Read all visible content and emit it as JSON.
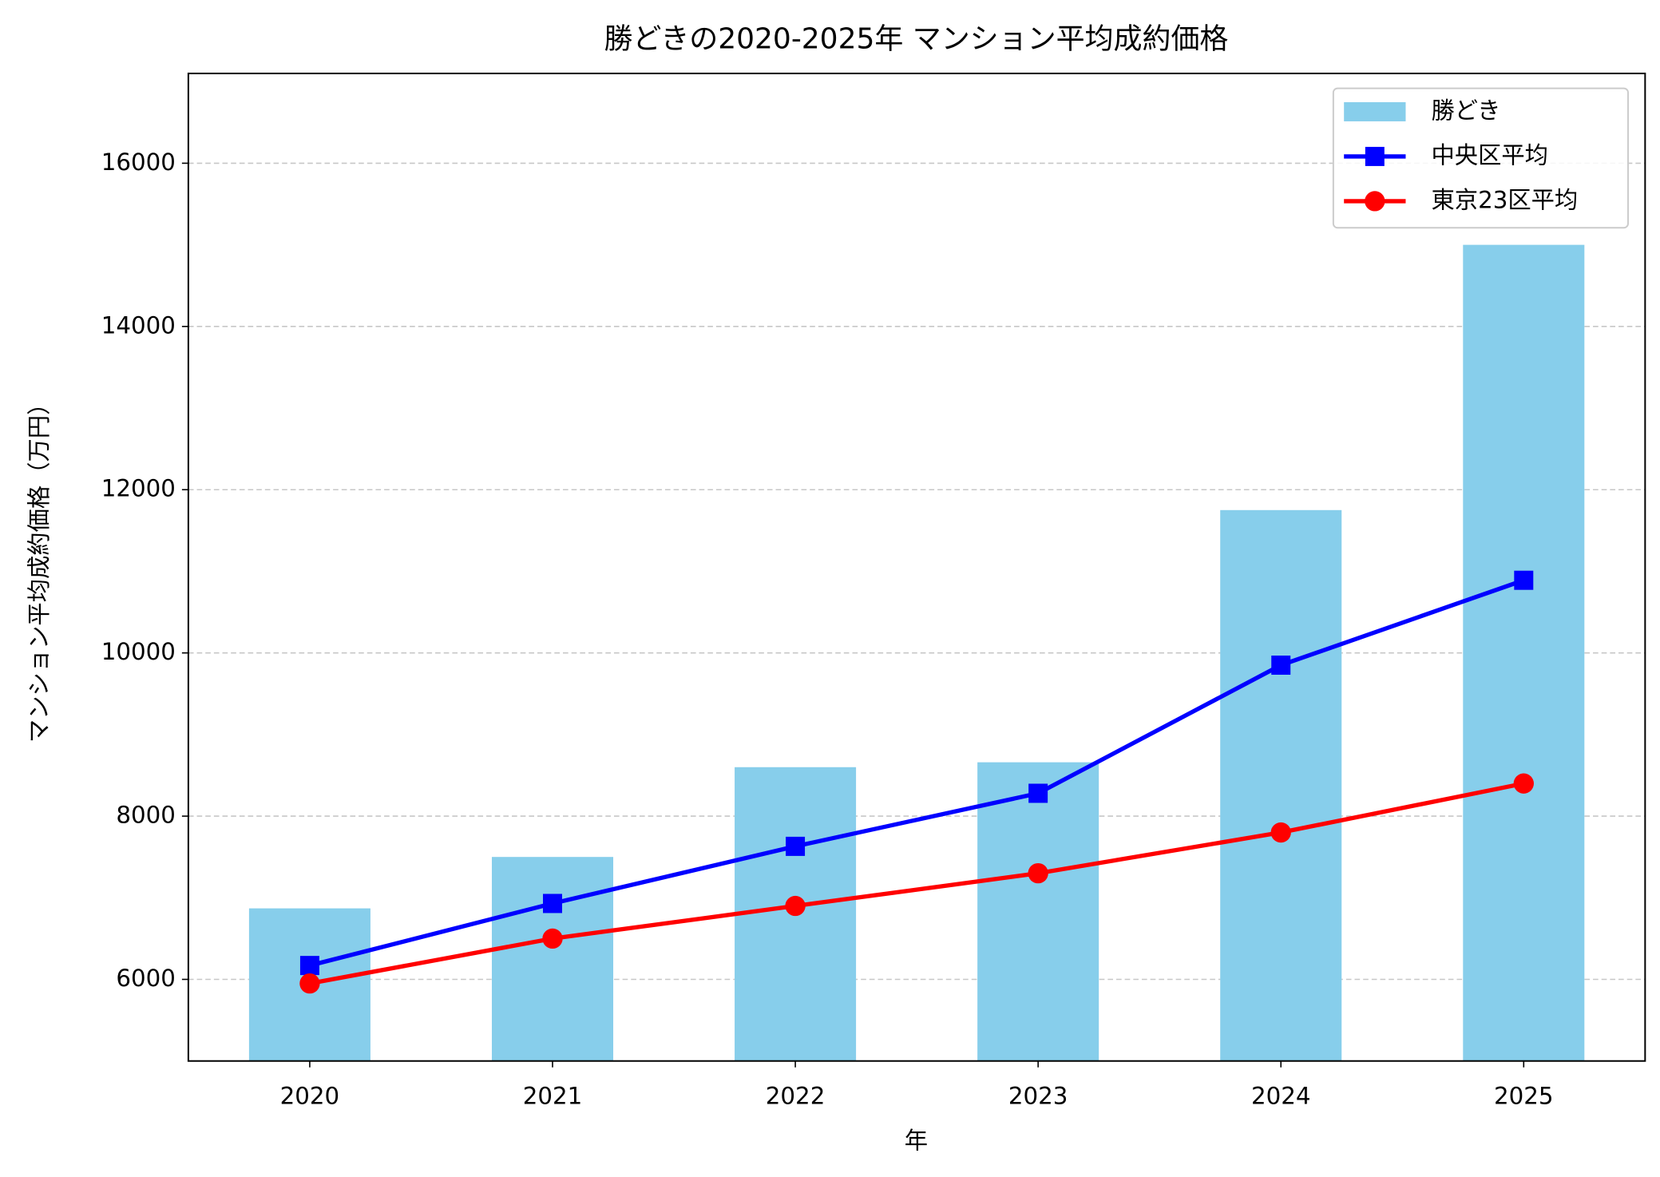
{
  "chart_data": {
    "type": "bar_line",
    "title": "勝どきの2020-2025年 マンション平均成約価格",
    "x_label": "年",
    "y_label": "マンション平均成約価格（万円）",
    "categories": [
      "2020",
      "2021",
      "2022",
      "2023",
      "2024",
      "2025"
    ],
    "series": [
      {
        "name": "勝どき",
        "type": "bar",
        "color": "#87ceeb",
        "values": [
          6870,
          7500,
          8600,
          8660,
          11750,
          15000
        ]
      },
      {
        "name": "中央区平均",
        "type": "line",
        "marker": "square",
        "color": "#0000ff",
        "values": [
          6170,
          6930,
          7630,
          8280,
          9850,
          10890
        ]
      },
      {
        "name": "東京23区平均",
        "type": "line",
        "marker": "circle",
        "color": "#ff0000",
        "values": [
          5950,
          6500,
          6900,
          7300,
          7800,
          8400
        ]
      }
    ],
    "ylim": [
      5000,
      17100
    ],
    "yticks": [
      6000,
      8000,
      10000,
      12000,
      14000,
      16000
    ],
    "grid": true,
    "legend": "upper right"
  }
}
